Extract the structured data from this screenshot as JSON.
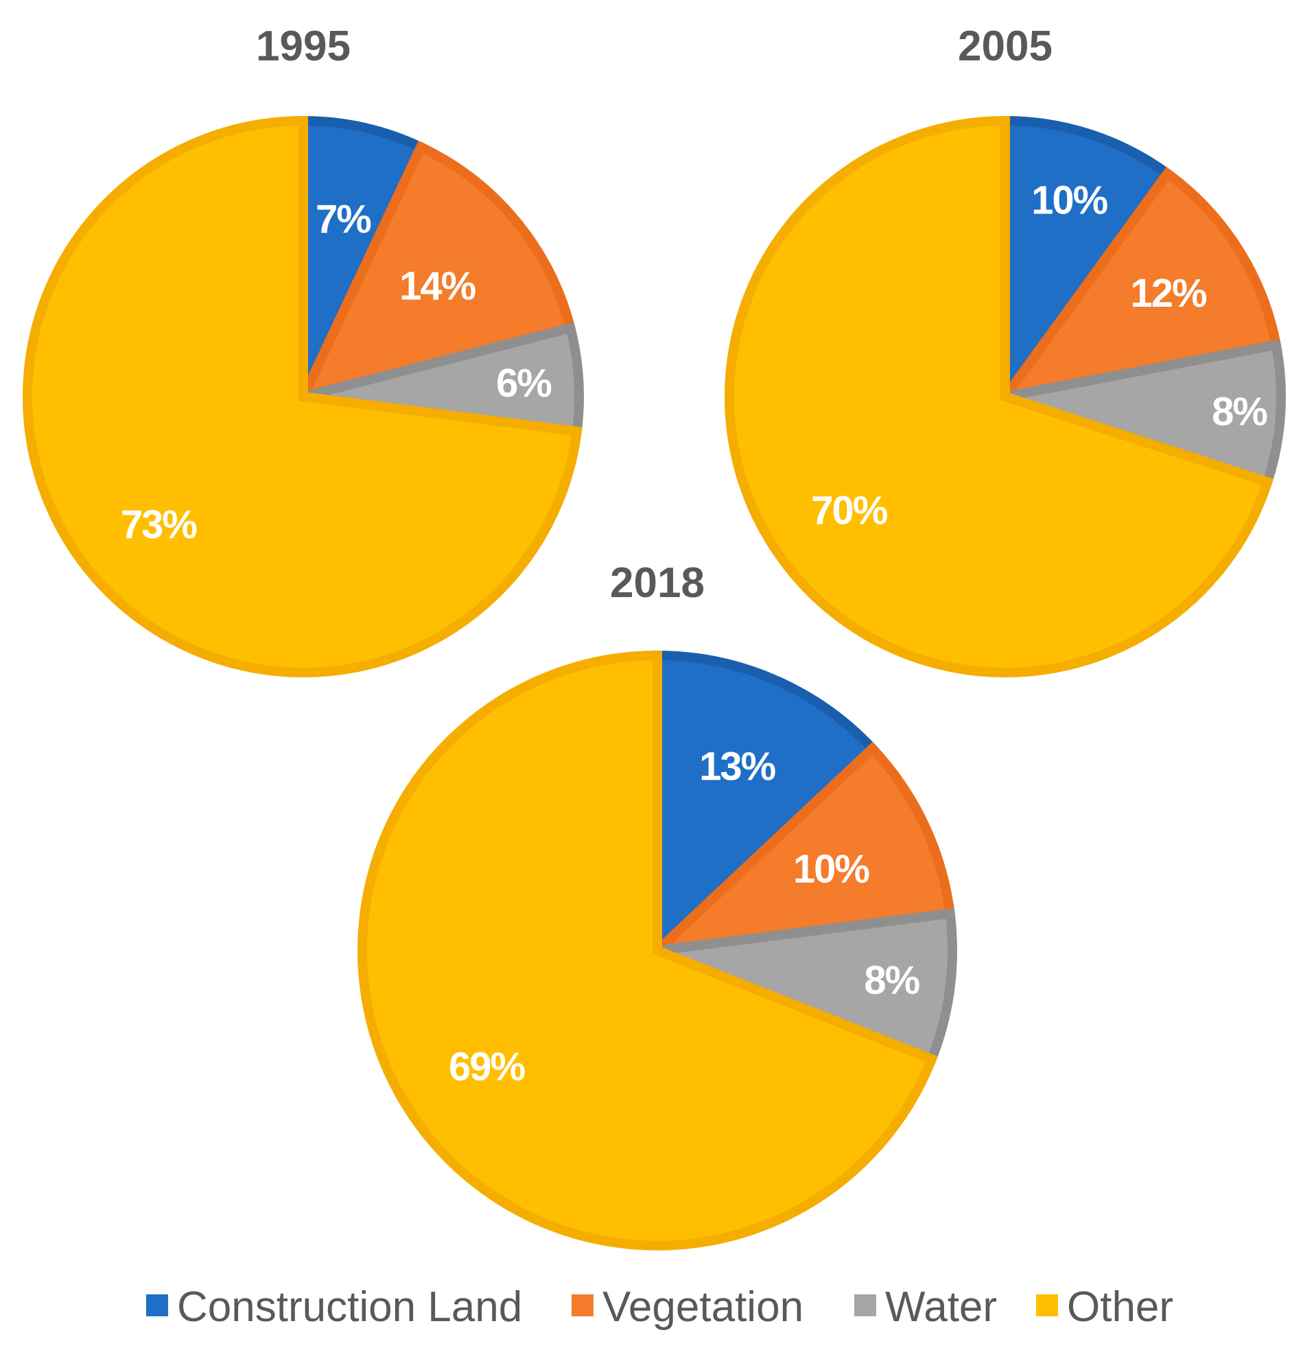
{
  "chart_data": [
    {
      "type": "pie",
      "title": "1995",
      "categories": [
        "Construction Land",
        "Vegetation",
        "Water",
        "Other"
      ],
      "values": [
        7,
        14,
        6,
        73
      ],
      "labels": [
        "7%",
        "14%",
        "6%",
        "73%"
      ]
    },
    {
      "type": "pie",
      "title": "2005",
      "categories": [
        "Construction Land",
        "Vegetation",
        "Water",
        "Other"
      ],
      "values": [
        10,
        12,
        8,
        70
      ],
      "labels": [
        "10%",
        "12%",
        "8%",
        "70%"
      ]
    },
    {
      "type": "pie",
      "title": "2018",
      "categories": [
        "Construction Land",
        "Vegetation",
        "Water",
        "Other"
      ],
      "values": [
        13,
        10,
        8,
        69
      ],
      "labels": [
        "13%",
        "10%",
        "8%",
        "69%"
      ]
    }
  ],
  "legend": {
    "position": "bottom",
    "items": [
      {
        "label": "Construction Land",
        "color": "#1f6fc7"
      },
      {
        "label": "Vegetation",
        "color": "#f47c2a"
      },
      {
        "label": "Water",
        "color": "#a6a6a6"
      },
      {
        "label": "Other",
        "color": "#ffbf00"
      }
    ]
  },
  "colors": {
    "fills": [
      "#1f6fc7",
      "#f47c2a",
      "#a6a6a6",
      "#ffbf00"
    ],
    "edges": [
      "#1a5fad",
      "#ec6d1c",
      "#8f8f8f",
      "#f5ad00"
    ]
  }
}
